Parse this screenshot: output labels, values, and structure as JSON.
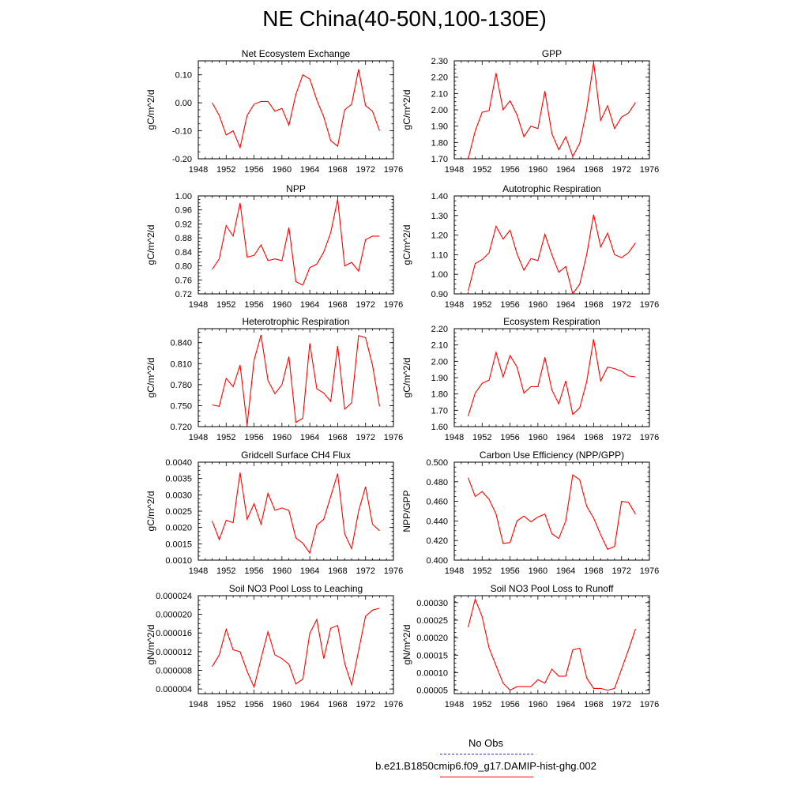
{
  "title": "NE China(40-50N,100-130E)",
  "legend": {
    "obs_label": "No Obs",
    "model_label": "b.e21.B1850cmip6.f09_g17.DAMIP-hist-ghg.002",
    "obs_color": "#3333cc",
    "model_color": "#ff0000"
  },
  "chart_data": [
    {
      "type": "line",
      "title": "Net Ecosystem Exchange",
      "ylabel": "gC/m^2/d",
      "xlim": [
        1948,
        1976
      ],
      "ylim": [
        -0.2,
        0.15
      ],
      "yticks": [
        -0.2,
        -0.1,
        0.0,
        0.1
      ],
      "ytick_labels": [
        "-0.20",
        "-0.10",
        "0.00",
        "0.10"
      ],
      "xticks": [
        1948,
        1952,
        1956,
        1960,
        1964,
        1968,
        1972,
        1976
      ],
      "xtick_labels": [
        "1948",
        "1952",
        "1956",
        "1960",
        "1964",
        "1968",
        "1972",
        "1976"
      ],
      "series": [
        {
          "name": "b.e21.B1850cmip6.f09_g17.DAMIP-hist-ghg.002",
          "x": [
            1950,
            1951,
            1952,
            1953,
            1954,
            1955,
            1956,
            1957,
            1958,
            1959,
            1960,
            1961,
            1962,
            1963,
            1964,
            1965,
            1966,
            1967,
            1968,
            1969,
            1970,
            1971,
            1972,
            1973,
            1974
          ],
          "values": [
            0.0,
            -0.045,
            -0.115,
            -0.1,
            -0.16,
            -0.045,
            -0.005,
            0.005,
            0.005,
            -0.03,
            -0.02,
            -0.08,
            0.03,
            0.1,
            0.085,
            0.01,
            -0.05,
            -0.135,
            -0.155,
            -0.025,
            -0.005,
            0.12,
            -0.01,
            -0.03,
            -0.1
          ]
        }
      ]
    },
    {
      "type": "line",
      "title": "GPP",
      "ylabel": "gC/m^2/d",
      "xlim": [
        1948,
        1976
      ],
      "ylim": [
        1.7,
        2.3
      ],
      "yticks": [
        1.7,
        1.8,
        1.9,
        2.0,
        2.1,
        2.2,
        2.3
      ],
      "ytick_labels": [
        "1.70",
        "1.80",
        "1.90",
        "2.00",
        "2.10",
        "2.20",
        "2.30"
      ],
      "xticks": [
        1948,
        1952,
        1956,
        1960,
        1964,
        1968,
        1972,
        1976
      ],
      "xtick_labels": [
        "1948",
        "1952",
        "1956",
        "1960",
        "1964",
        "1968",
        "1972",
        "1976"
      ],
      "series": [
        {
          "name": "b.e21.B1850cmip6.f09_g17.DAMIP-hist-ghg.002",
          "x": [
            1950,
            1951,
            1952,
            1953,
            1954,
            1955,
            1956,
            1957,
            1958,
            1959,
            1960,
            1961,
            1962,
            1963,
            1964,
            1965,
            1966,
            1967,
            1968,
            1969,
            1970,
            1971,
            1972,
            1973,
            1974
          ],
          "values": [
            1.7,
            1.87,
            1.985,
            1.995,
            2.225,
            2.0,
            2.055,
            1.97,
            1.835,
            1.9,
            1.885,
            2.115,
            1.855,
            1.755,
            1.835,
            1.715,
            1.795,
            2.0,
            2.29,
            1.935,
            2.025,
            1.885,
            1.955,
            1.98,
            2.045
          ]
        }
      ]
    },
    {
      "type": "line",
      "title": "NPP",
      "ylabel": "gC/m^2/d",
      "xlim": [
        1948,
        1976
      ],
      "ylim": [
        0.72,
        1.0
      ],
      "yticks": [
        0.72,
        0.76,
        0.8,
        0.84,
        0.88,
        0.92,
        0.96,
        1.0
      ],
      "ytick_labels": [
        "0.72",
        "0.76",
        "0.80",
        "0.84",
        "0.88",
        "0.92",
        "0.96",
        "1.00"
      ],
      "xticks": [
        1948,
        1952,
        1956,
        1960,
        1964,
        1968,
        1972,
        1976
      ],
      "xtick_labels": [
        "1948",
        "1952",
        "1956",
        "1960",
        "1964",
        "1968",
        "1972",
        "1976"
      ],
      "series": [
        {
          "name": "b.e21.B1850cmip6.f09_g17.DAMIP-hist-ghg.002",
          "x": [
            1950,
            1951,
            1952,
            1953,
            1954,
            1955,
            1956,
            1957,
            1958,
            1959,
            1960,
            1961,
            1962,
            1963,
            1964,
            1965,
            1966,
            1967,
            1968,
            1969,
            1970,
            1971,
            1972,
            1973,
            1974
          ],
          "values": [
            0.79,
            0.82,
            0.915,
            0.885,
            0.98,
            0.825,
            0.83,
            0.86,
            0.815,
            0.82,
            0.815,
            0.91,
            0.755,
            0.745,
            0.795,
            0.805,
            0.84,
            0.895,
            0.99,
            0.8,
            0.81,
            0.785,
            0.875,
            0.885,
            0.885
          ]
        }
      ]
    },
    {
      "type": "line",
      "title": "Autotrophic Respiration",
      "ylabel": "gC/m^2/d",
      "xlim": [
        1948,
        1976
      ],
      "ylim": [
        0.9,
        1.4
      ],
      "yticks": [
        0.9,
        1.0,
        1.1,
        1.2,
        1.3,
        1.4
      ],
      "ytick_labels": [
        "0.90",
        "1.00",
        "1.10",
        "1.20",
        "1.30",
        "1.40"
      ],
      "xticks": [
        1948,
        1952,
        1956,
        1960,
        1964,
        1968,
        1972,
        1976
      ],
      "xtick_labels": [
        "1948",
        "1952",
        "1956",
        "1960",
        "1964",
        "1968",
        "1972",
        "1976"
      ],
      "series": [
        {
          "name": "b.e21.B1850cmip6.f09_g17.DAMIP-hist-ghg.002",
          "x": [
            1950,
            1951,
            1952,
            1953,
            1954,
            1955,
            1956,
            1957,
            1958,
            1959,
            1960,
            1961,
            1962,
            1963,
            1964,
            1965,
            1966,
            1967,
            1968,
            1969,
            1970,
            1971,
            1972,
            1973,
            1974
          ],
          "values": [
            0.915,
            1.055,
            1.075,
            1.11,
            1.245,
            1.18,
            1.225,
            1.105,
            1.02,
            1.08,
            1.07,
            1.205,
            1.1,
            1.01,
            1.04,
            0.9,
            0.95,
            1.1,
            1.305,
            1.14,
            1.21,
            1.1,
            1.085,
            1.11,
            1.16
          ]
        }
      ]
    },
    {
      "type": "line",
      "title": "Heterotrophic Respiration",
      "ylabel": "gC/m^2/d",
      "xlim": [
        1948,
        1976
      ],
      "ylim": [
        0.72,
        0.86
      ],
      "yticks": [
        0.72,
        0.75,
        0.78,
        0.81,
        0.84
      ],
      "ytick_labels": [
        "0.720",
        "0.750",
        "0.780",
        "0.810",
        "0.840"
      ],
      "xticks": [
        1948,
        1952,
        1956,
        1960,
        1964,
        1968,
        1972,
        1976
      ],
      "xtick_labels": [
        "1948",
        "1952",
        "1956",
        "1960",
        "1964",
        "1968",
        "1972",
        "1976"
      ],
      "series": [
        {
          "name": "b.e21.B1850cmip6.f09_g17.DAMIP-hist-ghg.002",
          "x": [
            1950,
            1951,
            1952,
            1953,
            1954,
            1955,
            1956,
            1957,
            1958,
            1959,
            1960,
            1961,
            1962,
            1963,
            1964,
            1965,
            1966,
            1967,
            1968,
            1969,
            1970,
            1971,
            1972,
            1973,
            1974
          ],
          "values": [
            0.751,
            0.749,
            0.789,
            0.777,
            0.808,
            0.722,
            0.815,
            0.851,
            0.786,
            0.767,
            0.78,
            0.82,
            0.726,
            0.732,
            0.839,
            0.774,
            0.768,
            0.756,
            0.835,
            0.745,
            0.754,
            0.85,
            0.847,
            0.808,
            0.749
          ]
        }
      ]
    },
    {
      "type": "line",
      "title": "Ecosystem Respiration",
      "ylabel": "gC/m^2/d",
      "xlim": [
        1948,
        1976
      ],
      "ylim": [
        1.6,
        2.2
      ],
      "yticks": [
        1.6,
        1.7,
        1.8,
        1.9,
        2.0,
        2.1,
        2.2
      ],
      "ytick_labels": [
        "1.60",
        "1.70",
        "1.80",
        "1.90",
        "2.00",
        "2.10",
        "2.20"
      ],
      "xticks": [
        1948,
        1952,
        1956,
        1960,
        1964,
        1968,
        1972,
        1976
      ],
      "xtick_labels": [
        "1948",
        "1952",
        "1956",
        "1960",
        "1964",
        "1968",
        "1972",
        "1976"
      ],
      "series": [
        {
          "name": "b.e21.B1850cmip6.f09_g17.DAMIP-hist-ghg.002",
          "x": [
            1950,
            1951,
            1952,
            1953,
            1954,
            1955,
            1956,
            1957,
            1958,
            1959,
            1960,
            1961,
            1962,
            1963,
            1964,
            1965,
            1966,
            1967,
            1968,
            1969,
            1970,
            1971,
            1972,
            1973,
            1974
          ],
          "values": [
            1.665,
            1.805,
            1.865,
            1.885,
            2.055,
            1.905,
            2.035,
            1.965,
            1.805,
            1.845,
            1.845,
            2.025,
            1.825,
            1.74,
            1.88,
            1.675,
            1.715,
            1.875,
            2.135,
            1.88,
            1.965,
            1.955,
            1.94,
            1.91,
            1.905
          ]
        }
      ]
    },
    {
      "type": "line",
      "title": "Gridcell Surface CH4 Flux",
      "ylabel": "gC/m^2/d",
      "xlim": [
        1948,
        1976
      ],
      "ylim": [
        0.001,
        0.004
      ],
      "yticks": [
        0.001,
        0.0015,
        0.002,
        0.0025,
        0.003,
        0.0035,
        0.004
      ],
      "ytick_labels": [
        "0.0010",
        "0.0015",
        "0.0020",
        "0.0025",
        "0.0030",
        "0.0035",
        "0.0040"
      ],
      "xticks": [
        1948,
        1952,
        1956,
        1960,
        1964,
        1968,
        1972,
        1976
      ],
      "xtick_labels": [
        "1948",
        "1952",
        "1956",
        "1960",
        "1964",
        "1968",
        "1972",
        "1976"
      ],
      "series": [
        {
          "name": "b.e21.B1850cmip6.f09_g17.DAMIP-hist-ghg.002",
          "x": [
            1950,
            1951,
            1952,
            1953,
            1954,
            1955,
            1956,
            1957,
            1958,
            1959,
            1960,
            1961,
            1962,
            1963,
            1964,
            1965,
            1966,
            1967,
            1968,
            1969,
            1970,
            1971,
            1972,
            1973,
            1974
          ],
          "values": [
            0.0022,
            0.00163,
            0.00222,
            0.00215,
            0.00368,
            0.00225,
            0.00273,
            0.0021,
            0.00305,
            0.00253,
            0.0026,
            0.00252,
            0.00168,
            0.00152,
            0.00122,
            0.00207,
            0.00225,
            0.00295,
            0.00365,
            0.0018,
            0.00135,
            0.0025,
            0.00325,
            0.0021,
            0.0019
          ]
        }
      ]
    },
    {
      "type": "line",
      "title": "Carbon Use Efficiency (NPP/GPP)",
      "ylabel": "NPP/GPP",
      "xlim": [
        1948,
        1976
      ],
      "ylim": [
        0.4,
        0.5
      ],
      "yticks": [
        0.4,
        0.42,
        0.44,
        0.46,
        0.48,
        0.5
      ],
      "ytick_labels": [
        "0.400",
        "0.420",
        "0.440",
        "0.460",
        "0.480",
        "0.500"
      ],
      "xticks": [
        1948,
        1952,
        1956,
        1960,
        1964,
        1968,
        1972,
        1976
      ],
      "xtick_labels": [
        "1948",
        "1952",
        "1956",
        "1960",
        "1964",
        "1968",
        "1972",
        "1976"
      ],
      "series": [
        {
          "name": "b.e21.B1850cmip6.f09_g17.DAMIP-hist-ghg.002",
          "x": [
            1950,
            1951,
            1952,
            1953,
            1954,
            1955,
            1956,
            1957,
            1958,
            1959,
            1960,
            1961,
            1962,
            1963,
            1964,
            1965,
            1966,
            1967,
            1968,
            1969,
            1970,
            1971,
            1972,
            1973,
            1974
          ],
          "values": [
            0.484,
            0.465,
            0.47,
            0.462,
            0.447,
            0.417,
            0.418,
            0.44,
            0.445,
            0.439,
            0.444,
            0.447,
            0.427,
            0.422,
            0.44,
            0.487,
            0.482,
            0.455,
            0.443,
            0.426,
            0.411,
            0.414,
            0.46,
            0.459,
            0.447
          ]
        }
      ]
    },
    {
      "type": "line",
      "title": "Soil NO3 Pool Loss to Leaching",
      "ylabel": "gN/m^2/d",
      "xlim": [
        1948,
        1976
      ],
      "ylim": [
        3e-06,
        2.4e-05
      ],
      "yticks": [
        4e-06,
        8e-06,
        1.2e-05,
        1.6e-05,
        2e-05,
        2.4e-05
      ],
      "ytick_labels": [
        "0.000004",
        "0.000008",
        "0.000012",
        "0.000016",
        "0.000020",
        "0.000024"
      ],
      "xticks": [
        1948,
        1952,
        1956,
        1960,
        1964,
        1968,
        1972,
        1976
      ],
      "xtick_labels": [
        "1948",
        "1952",
        "1956",
        "1960",
        "1964",
        "1968",
        "1972",
        "1976"
      ],
      "series": [
        {
          "name": "b.e21.B1850cmip6.f09_g17.DAMIP-hist-ghg.002",
          "x": [
            1950,
            1951,
            1952,
            1953,
            1954,
            1955,
            1956,
            1957,
            1958,
            1959,
            1960,
            1961,
            1962,
            1963,
            1964,
            1965,
            1966,
            1967,
            1968,
            1969,
            1970,
            1971,
            1972,
            1973,
            1974
          ],
          "values": [
            8.8e-06,
            1.13e-05,
            1.68e-05,
            1.24e-05,
            1.2e-05,
            7.8e-06,
            4.4e-06,
            1.05e-05,
            1.63e-05,
            1.13e-05,
            1.05e-05,
            9.3e-06,
            5.1e-06,
            6.1e-06,
            1.59e-05,
            1.89e-05,
            1.05e-05,
            1.7e-05,
            1.76e-05,
            9.5e-06,
            4.9e-06,
            1.22e-05,
            1.96e-05,
            2.09e-05,
            2.13e-05
          ]
        }
      ]
    },
    {
      "type": "line",
      "title": "Soil NO3 Pool Loss to Runoff",
      "ylabel": "gN/m^2/d",
      "xlim": [
        1948,
        1976
      ],
      "ylim": [
        4e-05,
        0.00032
      ],
      "yticks": [
        5e-05,
        0.0001,
        0.00015,
        0.0002,
        0.00025,
        0.0003
      ],
      "ytick_labels": [
        "0.00005",
        "0.00010",
        "0.00015",
        "0.00020",
        "0.00025",
        "0.00030"
      ],
      "xticks": [
        1948,
        1952,
        1956,
        1960,
        1964,
        1968,
        1972,
        1976
      ],
      "xtick_labels": [
        "1948",
        "1952",
        "1956",
        "1960",
        "1964",
        "1968",
        "1972",
        "1976"
      ],
      "series": [
        {
          "name": "b.e21.B1850cmip6.f09_g17.DAMIP-hist-ghg.002",
          "x": [
            1950,
            1951,
            1952,
            1953,
            1954,
            1955,
            1956,
            1957,
            1958,
            1959,
            1960,
            1961,
            1962,
            1963,
            1964,
            1965,
            1966,
            1967,
            1968,
            1969,
            1970,
            1971,
            1972,
            1973,
            1974
          ],
          "values": [
            0.00023,
            0.00031,
            0.00026,
            0.00017,
            0.00012,
            7e-05,
            5e-05,
            6e-05,
            6e-05,
            6e-05,
            8e-05,
            7e-05,
            0.00011,
            9e-05,
            9e-05,
            0.000165,
            0.00017,
            8.5e-05,
            5.5e-05,
            5.5e-05,
            5e-05,
            5.5e-05,
            0.00011,
            0.000165,
            0.000225
          ]
        }
      ]
    }
  ]
}
